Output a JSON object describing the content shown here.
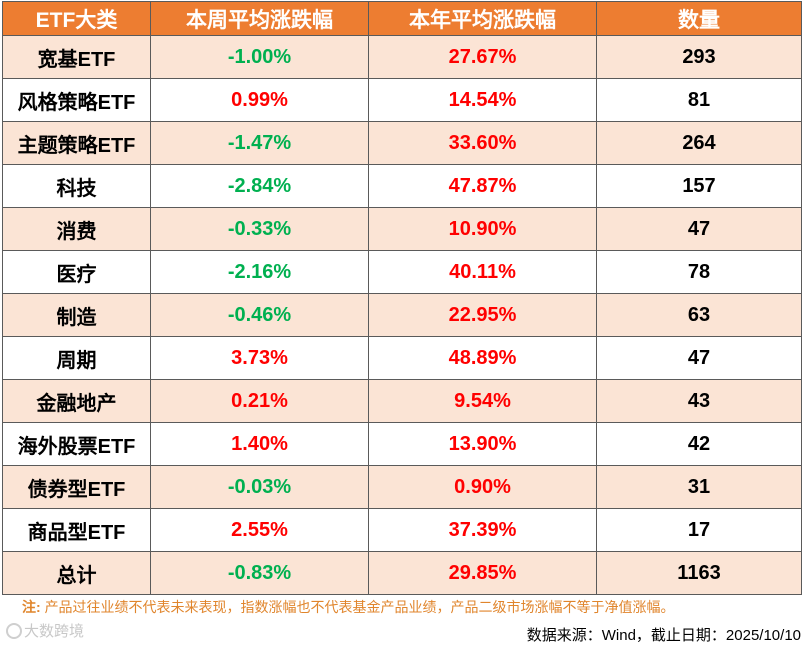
{
  "table": {
    "headers": [
      "ETF大类",
      "本周平均涨跌幅",
      "本年平均涨跌幅",
      "数量"
    ],
    "rows": [
      {
        "category": "宽基ETF",
        "week_change": "-1.00%",
        "week_sign": "neg",
        "year_change": "27.67%",
        "year_sign": "pos",
        "count": "293"
      },
      {
        "category": "风格策略ETF",
        "week_change": "0.99%",
        "week_sign": "pos",
        "year_change": "14.54%",
        "year_sign": "pos",
        "count": "81"
      },
      {
        "category": "主题策略ETF",
        "week_change": "-1.47%",
        "week_sign": "neg",
        "year_change": "33.60%",
        "year_sign": "pos",
        "count": "264"
      },
      {
        "category": "科技",
        "week_change": "-2.84%",
        "week_sign": "neg",
        "year_change": "47.87%",
        "year_sign": "pos",
        "count": "157"
      },
      {
        "category": "消费",
        "week_change": "-0.33%",
        "week_sign": "neg",
        "year_change": "10.90%",
        "year_sign": "pos",
        "count": "47"
      },
      {
        "category": "医疗",
        "week_change": "-2.16%",
        "week_sign": "neg",
        "year_change": "40.11%",
        "year_sign": "pos",
        "count": "78"
      },
      {
        "category": "制造",
        "week_change": "-0.46%",
        "week_sign": "neg",
        "year_change": "22.95%",
        "year_sign": "pos",
        "count": "63"
      },
      {
        "category": "周期",
        "week_change": "3.73%",
        "week_sign": "pos",
        "year_change": "48.89%",
        "year_sign": "pos",
        "count": "47"
      },
      {
        "category": "金融地产",
        "week_change": "0.21%",
        "week_sign": "pos",
        "year_change": "9.54%",
        "year_sign": "pos",
        "count": "43"
      },
      {
        "category": "海外股票ETF",
        "week_change": "1.40%",
        "week_sign": "pos",
        "year_change": "13.90%",
        "year_sign": "pos",
        "count": "42"
      },
      {
        "category": "债券型ETF",
        "week_change": "-0.03%",
        "week_sign": "neg",
        "year_change": "0.90%",
        "year_sign": "pos",
        "count": "31"
      },
      {
        "category": "商品型ETF",
        "week_change": "2.55%",
        "week_sign": "pos",
        "year_change": "37.39%",
        "year_sign": "pos",
        "count": "17"
      },
      {
        "category": "总计",
        "week_change": "-0.83%",
        "week_sign": "neg",
        "year_change": "29.85%",
        "year_sign": "pos",
        "count": "1163"
      }
    ]
  },
  "note": {
    "label": "注:",
    "text": "产品过往业绩不代表未来表现，指数涨幅也不代表基金产品业绩，产品二级市场涨幅不等于净值涨幅。"
  },
  "watermark": "大数跨境",
  "source": "数据来源：Wind，截止日期：2025/10/10",
  "colors": {
    "header_bg": "#ed7d31",
    "band_bg": "#fbe4d5",
    "negative": "#00b050",
    "positive": "#ff0000",
    "note": "#e0852c"
  }
}
